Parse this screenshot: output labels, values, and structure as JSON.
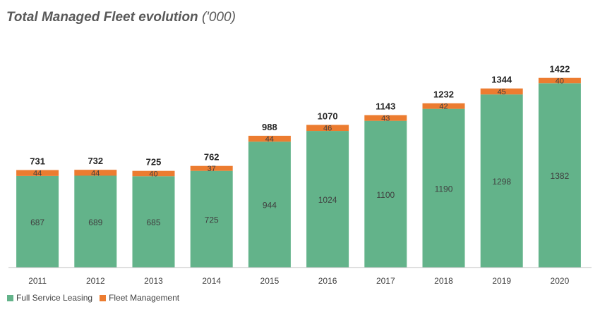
{
  "title": "Total Managed Fleet evolution",
  "title_unit": "('000)",
  "colors": {
    "fsl": "#63b38a",
    "fm": "#ec7c30",
    "text": "#404040",
    "total": "#262626",
    "axis": "#bfbfbf"
  },
  "chart_data": {
    "type": "bar",
    "stacked": true,
    "categories": [
      "2011",
      "2012",
      "2013",
      "2014",
      "2015",
      "2016",
      "2017",
      "2018",
      "2019",
      "2020"
    ],
    "series": [
      {
        "name": "Full Service Leasing",
        "values": [
          687,
          689,
          685,
          725,
          944,
          1024,
          1100,
          1190,
          1298,
          1382
        ]
      },
      {
        "name": "Fleet Management",
        "values": [
          44,
          44,
          40,
          37,
          44,
          46,
          43,
          42,
          45,
          40
        ]
      }
    ],
    "totals": [
      731,
      732,
      725,
      762,
      988,
      1070,
      1143,
      1232,
      1344,
      1422
    ],
    "legend_position": "bottom-left",
    "grid": false
  }
}
